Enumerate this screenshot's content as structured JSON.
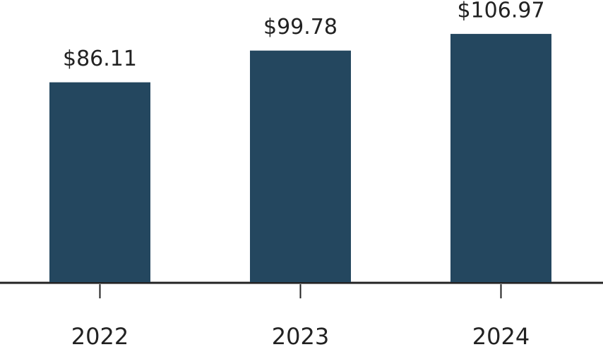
{
  "chart_data": {
    "type": "bar",
    "categories": [
      "2022",
      "2023",
      "2024"
    ],
    "values": [
      86.11,
      99.78,
      106.97
    ],
    "value_labels": [
      "$86.11",
      "$99.78",
      "$106.97"
    ],
    "color": "#24475f"
  }
}
